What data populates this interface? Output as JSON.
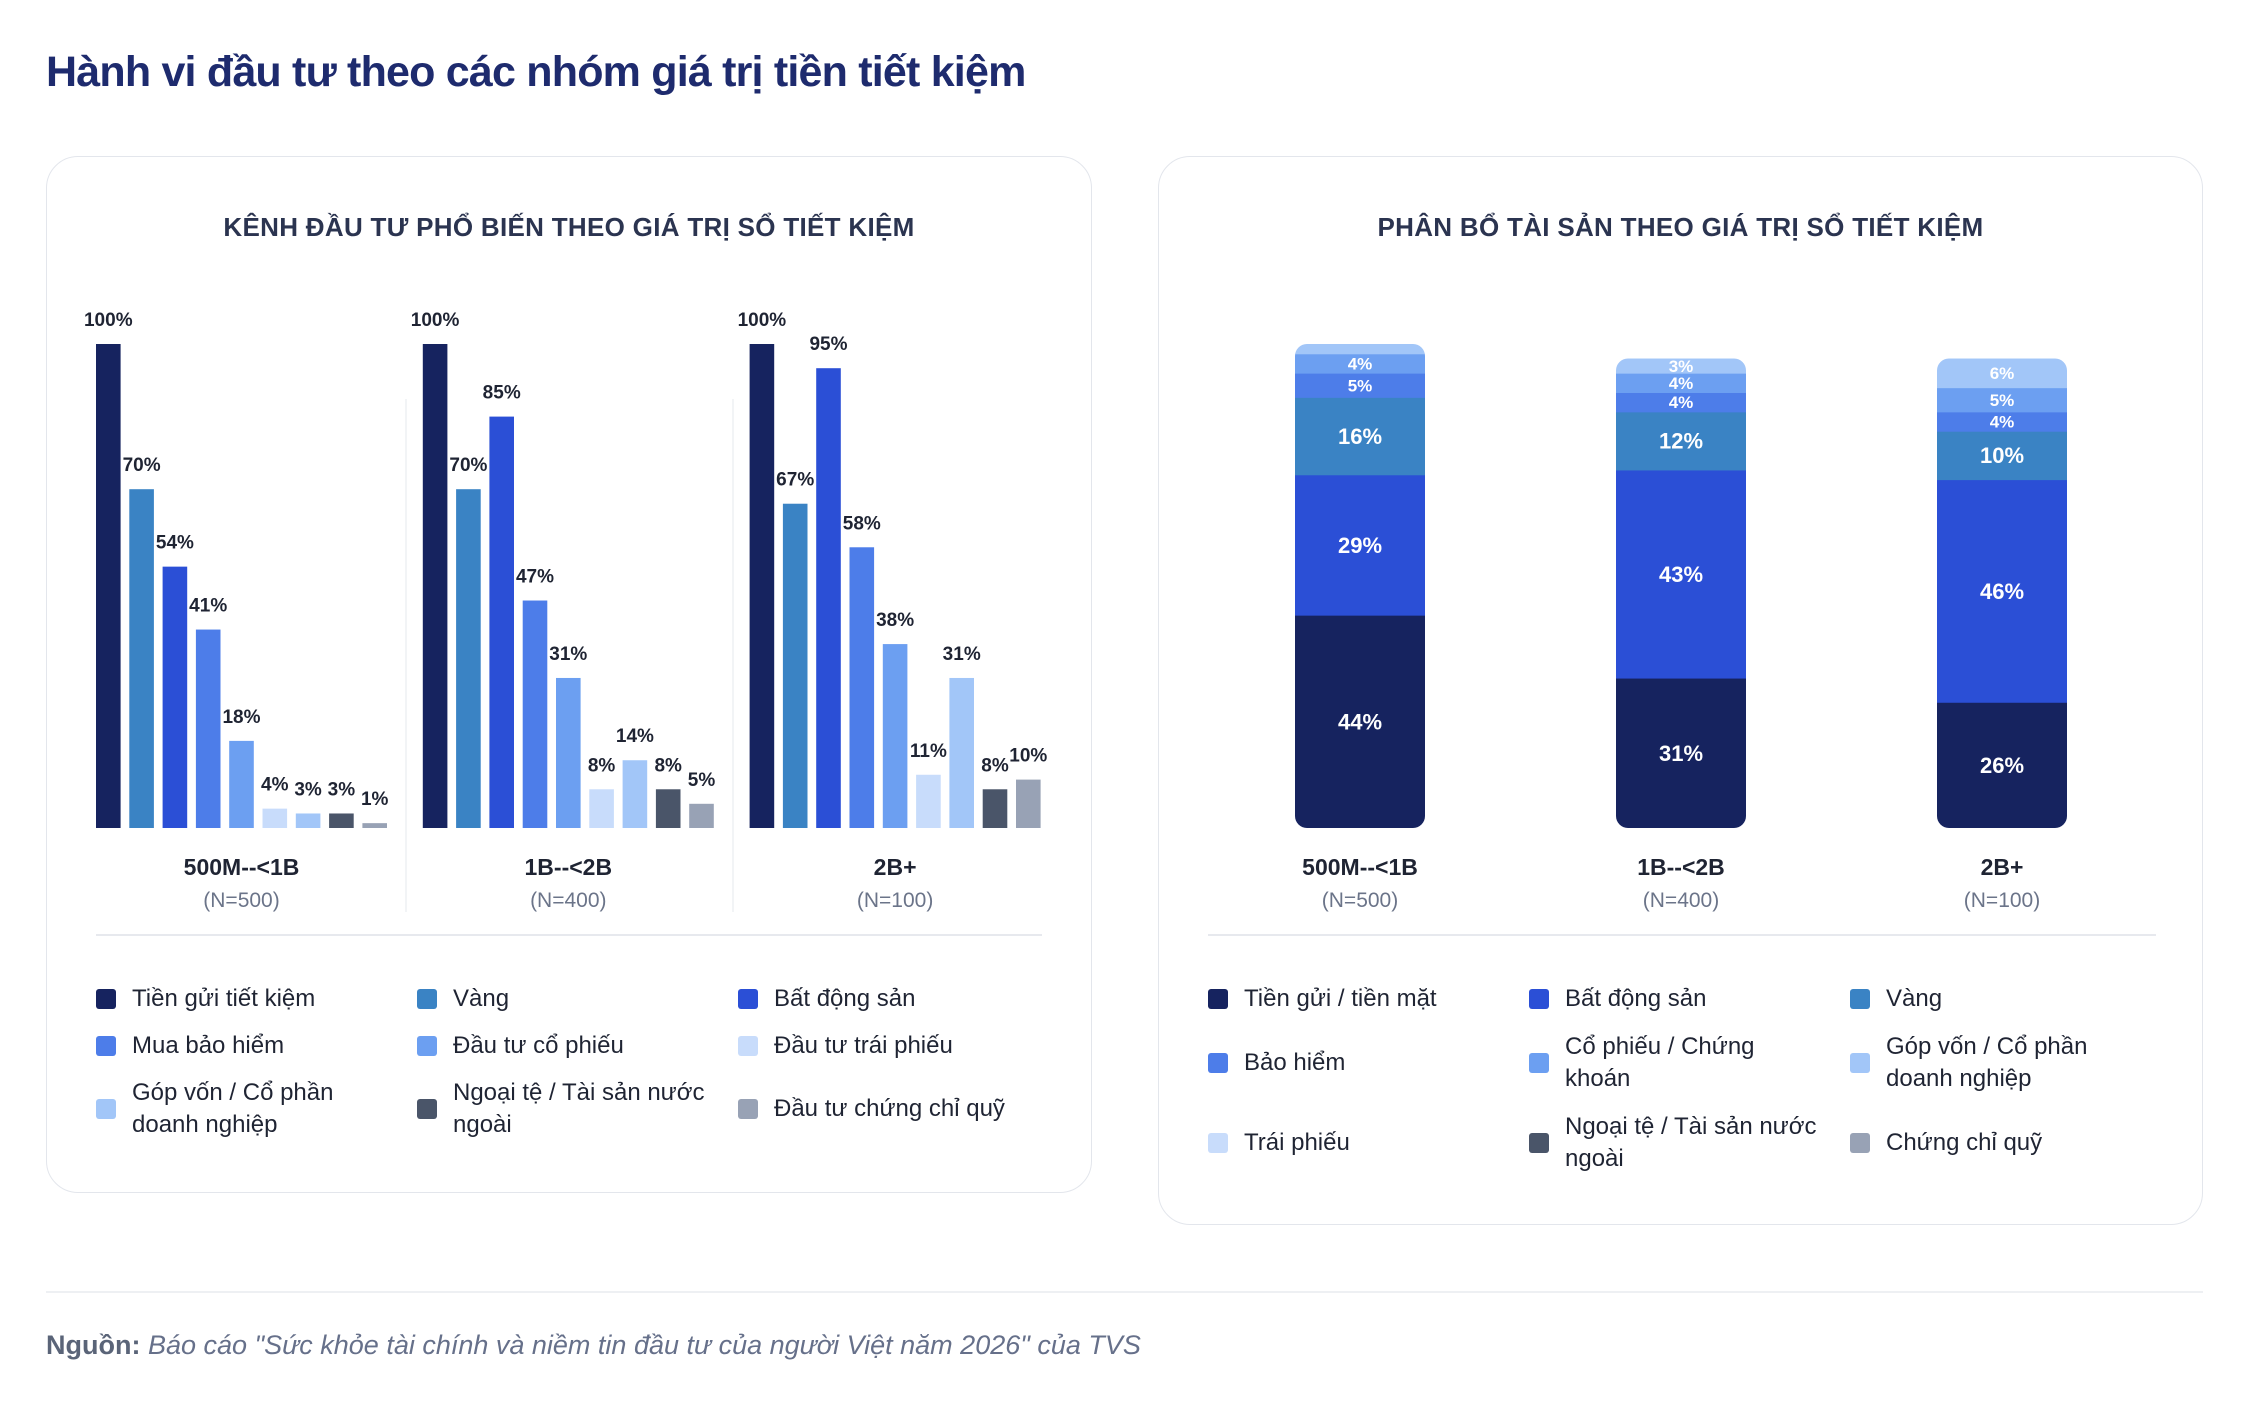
{
  "page": {
    "title": "Hành vi đầu tư theo các nhóm giá trị tiền tiết kiệm",
    "source_label": "Nguồn:",
    "source_text": "Báo cáo \"Sức khỏe tài chính và niềm tin đầu tư của người Việt năm 2026\" của TVS"
  },
  "colors": {
    "title": "#1e2b6e",
    "card_title": "#2b3450",
    "text": "#1f2433",
    "muted": "#6b7489",
    "source": "#66708a"
  },
  "chart_data": [
    {
      "type": "bar",
      "title": "KÊNH ĐẦU TƯ PHỔ BIẾN THEO GIÁ TRỊ SỔ TIẾT KIỆM",
      "categories": [
        "500M--<1B",
        "1B--<2B",
        "2B+"
      ],
      "category_notes": [
        "(N=500)",
        "(N=400)",
        "(N=100)"
      ],
      "value_suffix": "%",
      "ylim": [
        0,
        100
      ],
      "grid": false,
      "legend": "bottom",
      "series": [
        {
          "name": "Tiền gửi tiết kiệm",
          "color": "#16235f",
          "values": [
            100,
            100,
            100
          ]
        },
        {
          "name": "Vàng",
          "color": "#3a83c4",
          "values": [
            70,
            70,
            67
          ]
        },
        {
          "name": "Bất động sản",
          "color": "#2b4fd6",
          "values": [
            54,
            85,
            95
          ]
        },
        {
          "name": "Mua bảo hiểm",
          "color": "#4d7de9",
          "values": [
            41,
            47,
            58
          ]
        },
        {
          "name": "Đầu tư cổ phiếu",
          "color": "#6c9ff1",
          "values": [
            18,
            31,
            38
          ]
        },
        {
          "name": "Đầu tư trái phiếu",
          "color": "#c8dcfb",
          "values": [
            4,
            8,
            11
          ]
        },
        {
          "name": "Góp vốn / Cổ phần\ndoanh nghiệp",
          "color": "#a2c6f8",
          "values": [
            3,
            14,
            31
          ]
        },
        {
          "name": "Ngoại tệ / Tài sản nước\nngoài",
          "color": "#4a5569",
          "values": [
            3,
            8,
            8
          ]
        },
        {
          "name": "Đầu tư chứng chỉ quỹ",
          "color": "#98a2b5",
          "values": [
            1,
            5,
            10
          ]
        }
      ]
    },
    {
      "type": "bar",
      "stacked": true,
      "title": "PHÂN BỔ TÀI SẢN THEO GIÁ TRỊ SỔ TIẾT KIỆM",
      "categories": [
        "500M--<1B",
        "1B--<2B",
        "2B+"
      ],
      "category_notes": [
        "(N=500)",
        "(N=400)",
        "(N=100)"
      ],
      "value_suffix": "%",
      "ylim": [
        0,
        100
      ],
      "grid": false,
      "legend": "bottom",
      "series": [
        {
          "name": "Tiền gửi / tiền mặt",
          "color": "#16235f",
          "values": [
            44,
            31,
            26
          ]
        },
        {
          "name": "Bất động sản",
          "color": "#2b4fd6",
          "values": [
            29,
            43,
            46
          ]
        },
        {
          "name": "Vàng",
          "color": "#3a83c4",
          "values": [
            16,
            12,
            10
          ]
        },
        {
          "name": "Bảo hiểm",
          "color": "#4d7de9",
          "values": [
            5,
            4,
            4
          ]
        },
        {
          "name": "Cổ phiếu / Chứng\nkhoán",
          "color": "#6c9ff1",
          "values": [
            4,
            4,
            5
          ]
        },
        {
          "name": "Góp vốn / Cổ phần\ndoanh nghiệp",
          "color": "#a2c6f8",
          "values": [
            2,
            3,
            6
          ]
        },
        {
          "name": "Trái phiếu",
          "color": "#c8dcfb",
          "values": [
            null,
            null,
            null
          ]
        },
        {
          "name": "Ngoại tệ / Tài sản nước\nngoài",
          "color": "#4a5569",
          "values": [
            null,
            null,
            null
          ]
        },
        {
          "name": "Chứng chỉ quỹ",
          "color": "#98a2b5",
          "values": [
            null,
            null,
            null
          ]
        }
      ]
    }
  ]
}
